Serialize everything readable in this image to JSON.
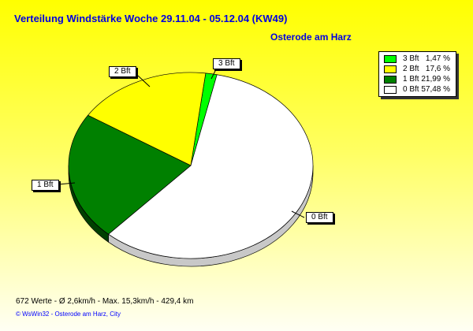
{
  "title": "Verteilung Windstärke  Woche 29.11.04  - 05.12.04  (KW49)",
  "location": "Osterode am Harz",
  "footer": {
    "stats": "672 Werte   -   Ø 2,6km/h  -  Max. 15,3km/h   -   429,4 km",
    "credit": "© WsWin32   -   Osterode am Harz, City"
  },
  "chart_data": {
    "type": "pie",
    "title": "Verteilung Windstärke  Woche 29.11.04  - 05.12.04  (KW49)",
    "categories": [
      "3 Bft",
      "0 Bft",
      "1 Bft",
      "2 Bft"
    ],
    "values": [
      1.47,
      57.48,
      21.99,
      17.6
    ],
    "colors": [
      "#00ff00",
      "#ffffff",
      "#008000",
      "#ffff00"
    ],
    "legend": [
      {
        "label": "3 Bft   1,47 %",
        "color": "#00ff00"
      },
      {
        "label": "2 Bft   17,6 %",
        "color": "#ffff00"
      },
      {
        "label": "1 Bft 21,99 %",
        "color": "#008000"
      },
      {
        "label": "0 Bft 57,48 %",
        "color": "#ffffff"
      }
    ],
    "legend_position": "top-right",
    "style": "3d"
  }
}
